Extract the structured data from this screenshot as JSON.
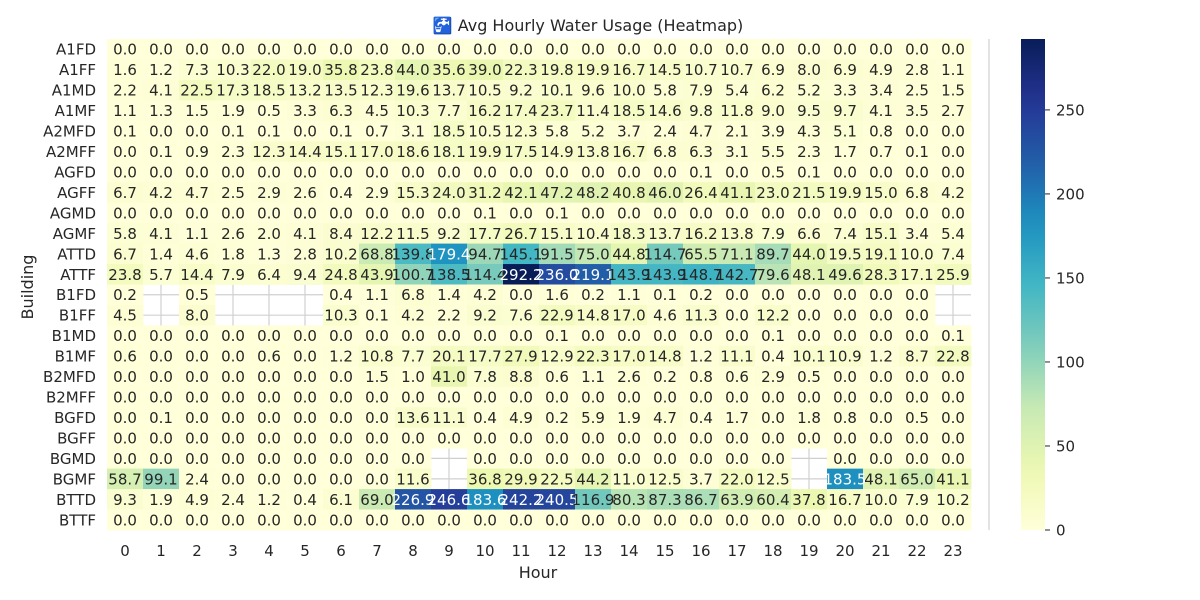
{
  "chart_data": {
    "type": "heatmap",
    "title": "🚰 Avg Hourly Water Usage (Heatmap)",
    "xlabel": "Hour",
    "ylabel": "Building",
    "x": [
      "0",
      "1",
      "2",
      "3",
      "4",
      "5",
      "6",
      "7",
      "8",
      "9",
      "10",
      "11",
      "12",
      "13",
      "14",
      "15",
      "16",
      "17",
      "18",
      "19",
      "20",
      "21",
      "22",
      "23"
    ],
    "y": [
      "A1FD",
      "A1FF",
      "A1MD",
      "A1MF",
      "A2MFD",
      "A2MFF",
      "AGFD",
      "AGFF",
      "AGMD",
      "AGMF",
      "ATTD",
      "ATTF",
      "B1FD",
      "B1FF",
      "B1MD",
      "B1MF",
      "B2MFD",
      "B2MFF",
      "BGFD",
      "BGFF",
      "BGMD",
      "BGMF",
      "BTTD",
      "BTTF"
    ],
    "values": [
      [
        0.0,
        0.0,
        0.0,
        0.0,
        0.0,
        0.0,
        0.0,
        0.0,
        0.0,
        0.0,
        0.0,
        0.0,
        0.0,
        0.0,
        0.0,
        0.0,
        0.0,
        0.0,
        0.0,
        0.0,
        0.0,
        0.0,
        0.0,
        0.0
      ],
      [
        1.6,
        1.2,
        7.3,
        10.3,
        22.0,
        19.0,
        35.8,
        23.8,
        44.0,
        35.6,
        39.0,
        22.3,
        19.8,
        19.9,
        16.7,
        14.5,
        10.7,
        10.7,
        6.9,
        8.0,
        6.9,
        4.9,
        2.8,
        1.1
      ],
      [
        2.2,
        4.1,
        22.5,
        17.3,
        18.5,
        13.2,
        13.5,
        12.3,
        19.6,
        13.7,
        10.5,
        9.2,
        10.1,
        9.6,
        10.0,
        5.8,
        7.9,
        5.4,
        6.2,
        5.2,
        3.3,
        3.4,
        2.5,
        1.5
      ],
      [
        1.1,
        1.3,
        1.5,
        1.9,
        0.5,
        3.3,
        6.3,
        4.5,
        10.3,
        7.7,
        16.2,
        17.4,
        23.7,
        11.4,
        18.5,
        14.6,
        9.8,
        11.8,
        9.0,
        9.5,
        9.7,
        4.1,
        3.5,
        2.7
      ],
      [
        0.1,
        0.0,
        0.0,
        0.1,
        0.1,
        0.0,
        0.1,
        0.7,
        3.1,
        18.5,
        10.5,
        12.3,
        5.8,
        5.2,
        3.7,
        2.4,
        4.7,
        2.1,
        3.9,
        4.3,
        5.1,
        0.8,
        0.0,
        0.0
      ],
      [
        0.0,
        0.1,
        0.9,
        2.3,
        12.3,
        14.4,
        15.1,
        17.0,
        18.6,
        18.1,
        19.9,
        17.5,
        14.9,
        13.8,
        16.7,
        6.8,
        6.3,
        3.1,
        5.5,
        2.3,
        1.7,
        0.7,
        0.1,
        0.0
      ],
      [
        0.0,
        0.0,
        0.0,
        0.0,
        0.0,
        0.0,
        0.0,
        0.0,
        0.0,
        0.0,
        0.0,
        0.0,
        0.0,
        0.0,
        0.0,
        0.0,
        0.1,
        0.0,
        0.5,
        0.1,
        0.0,
        0.0,
        0.0,
        0.0
      ],
      [
        6.7,
        4.2,
        4.7,
        2.5,
        2.9,
        2.6,
        0.4,
        2.9,
        15.3,
        24.0,
        31.2,
        42.1,
        47.2,
        48.2,
        40.8,
        46.0,
        26.4,
        41.1,
        23.0,
        21.5,
        19.9,
        15.0,
        6.8,
        4.2
      ],
      [
        0.0,
        0.0,
        0.0,
        0.0,
        0.0,
        0.0,
        0.0,
        0.0,
        0.0,
        0.0,
        0.1,
        0.0,
        0.1,
        0.0,
        0.0,
        0.0,
        0.0,
        0.0,
        0.0,
        0.0,
        0.0,
        0.0,
        0.0,
        0.0
      ],
      [
        5.8,
        4.1,
        1.1,
        2.6,
        2.0,
        4.1,
        8.4,
        12.2,
        11.5,
        9.2,
        17.7,
        26.7,
        15.1,
        10.4,
        18.3,
        13.7,
        16.2,
        13.8,
        7.9,
        6.6,
        7.4,
        15.1,
        3.4,
        5.4
      ],
      [
        6.7,
        1.4,
        4.6,
        1.8,
        1.3,
        2.8,
        10.2,
        68.8,
        139.8,
        179.4,
        94.7,
        145.1,
        91.5,
        75.0,
        44.8,
        114.7,
        65.5,
        71.1,
        89.7,
        44.0,
        19.5,
        19.1,
        10.0,
        7.4
      ],
      [
        23.8,
        5.7,
        14.4,
        7.9,
        6.4,
        9.4,
        24.8,
        43.9,
        100.7,
        138.5,
        114.4,
        292.2,
        236.0,
        219.1,
        143.9,
        143.9,
        148.7,
        142.7,
        79.6,
        48.1,
        49.6,
        28.3,
        17.1,
        25.9
      ],
      [
        0.2,
        null,
        0.5,
        null,
        null,
        null,
        0.4,
        1.1,
        6.8,
        1.4,
        4.2,
        0.0,
        1.6,
        0.2,
        1.1,
        0.1,
        0.2,
        0.0,
        0.0,
        0.0,
        0.0,
        0.0,
        0.0,
        null
      ],
      [
        4.5,
        null,
        8.0,
        null,
        null,
        null,
        10.3,
        0.1,
        4.2,
        2.2,
        9.2,
        7.6,
        22.9,
        14.8,
        17.0,
        4.6,
        11.3,
        0.0,
        12.2,
        0.0,
        0.0,
        0.0,
        0.0,
        null
      ],
      [
        0.0,
        0.0,
        0.0,
        0.0,
        0.0,
        0.0,
        0.0,
        0.0,
        0.0,
        0.0,
        0.0,
        0.0,
        0.1,
        0.0,
        0.0,
        0.0,
        0.0,
        0.0,
        0.1,
        0.0,
        0.0,
        0.0,
        0.0,
        0.1
      ],
      [
        0.6,
        0.0,
        0.0,
        0.0,
        0.6,
        0.0,
        1.2,
        10.8,
        7.7,
        20.1,
        17.7,
        27.9,
        12.9,
        22.3,
        17.0,
        14.8,
        1.2,
        11.1,
        0.4,
        10.1,
        10.9,
        1.2,
        8.7,
        22.8
      ],
      [
        0.0,
        0.0,
        0.0,
        0.0,
        0.0,
        0.0,
        0.0,
        1.5,
        1.0,
        41.0,
        7.8,
        8.8,
        0.6,
        1.1,
        2.6,
        0.2,
        0.8,
        0.6,
        2.9,
        0.5,
        0.0,
        0.0,
        0.0,
        0.0
      ],
      [
        0.0,
        0.0,
        0.0,
        0.0,
        0.0,
        0.0,
        0.0,
        0.0,
        0.0,
        0.0,
        0.0,
        0.0,
        0.0,
        0.0,
        0.0,
        0.0,
        0.0,
        0.0,
        0.0,
        0.0,
        0.0,
        0.0,
        0.0,
        0.0
      ],
      [
        0.0,
        0.1,
        0.0,
        0.0,
        0.0,
        0.0,
        0.0,
        0.0,
        13.6,
        11.1,
        0.4,
        4.9,
        0.2,
        5.9,
        1.9,
        4.7,
        0.4,
        1.7,
        0.0,
        1.8,
        0.8,
        0.0,
        0.5,
        0.0
      ],
      [
        0.0,
        0.0,
        0.0,
        0.0,
        0.0,
        0.0,
        0.0,
        0.0,
        0.0,
        0.0,
        0.0,
        0.0,
        0.0,
        0.0,
        0.0,
        0.0,
        0.0,
        0.0,
        0.0,
        0.0,
        0.0,
        0.0,
        0.0,
        0.0
      ],
      [
        0.0,
        0.0,
        0.0,
        0.0,
        0.0,
        0.0,
        0.0,
        0.0,
        0.0,
        null,
        0.0,
        0.0,
        0.0,
        0.0,
        0.0,
        0.0,
        0.0,
        0.0,
        0.0,
        null,
        0.0,
        0.0,
        0.0,
        0.0
      ],
      [
        58.7,
        99.1,
        2.4,
        0.0,
        0.0,
        0.0,
        0.0,
        0.0,
        11.6,
        null,
        36.8,
        29.9,
        22.5,
        44.2,
        11.0,
        12.5,
        3.7,
        22.0,
        12.5,
        null,
        183.5,
        48.1,
        65.0,
        41.1
      ],
      [
        9.3,
        1.9,
        4.9,
        2.4,
        1.2,
        0.4,
        6.1,
        69.0,
        226.9,
        246.6,
        183.6,
        242.2,
        240.5,
        116.9,
        80.3,
        87.3,
        86.7,
        63.9,
        60.4,
        37.8,
        16.7,
        10.0,
        7.9,
        10.2
      ],
      [
        0.0,
        0.0,
        0.0,
        0.0,
        0.0,
        0.0,
        0.0,
        0.0,
        0.0,
        0.0,
        0.0,
        0.0,
        0.0,
        0.0,
        0.0,
        0.0,
        0.0,
        0.0,
        0.0,
        0.0,
        0.0,
        0.0,
        0.0,
        0.0
      ]
    ],
    "colormap": "YlGnBu",
    "colorbar": {
      "min": 0,
      "max": 292.2,
      "ticks": [
        0,
        50,
        100,
        150,
        200,
        250
      ]
    },
    "annotations": "cell values, 1 decimal",
    "legend": "colorbar-right",
    "grid": "white gridlines visible in empty cells"
  }
}
